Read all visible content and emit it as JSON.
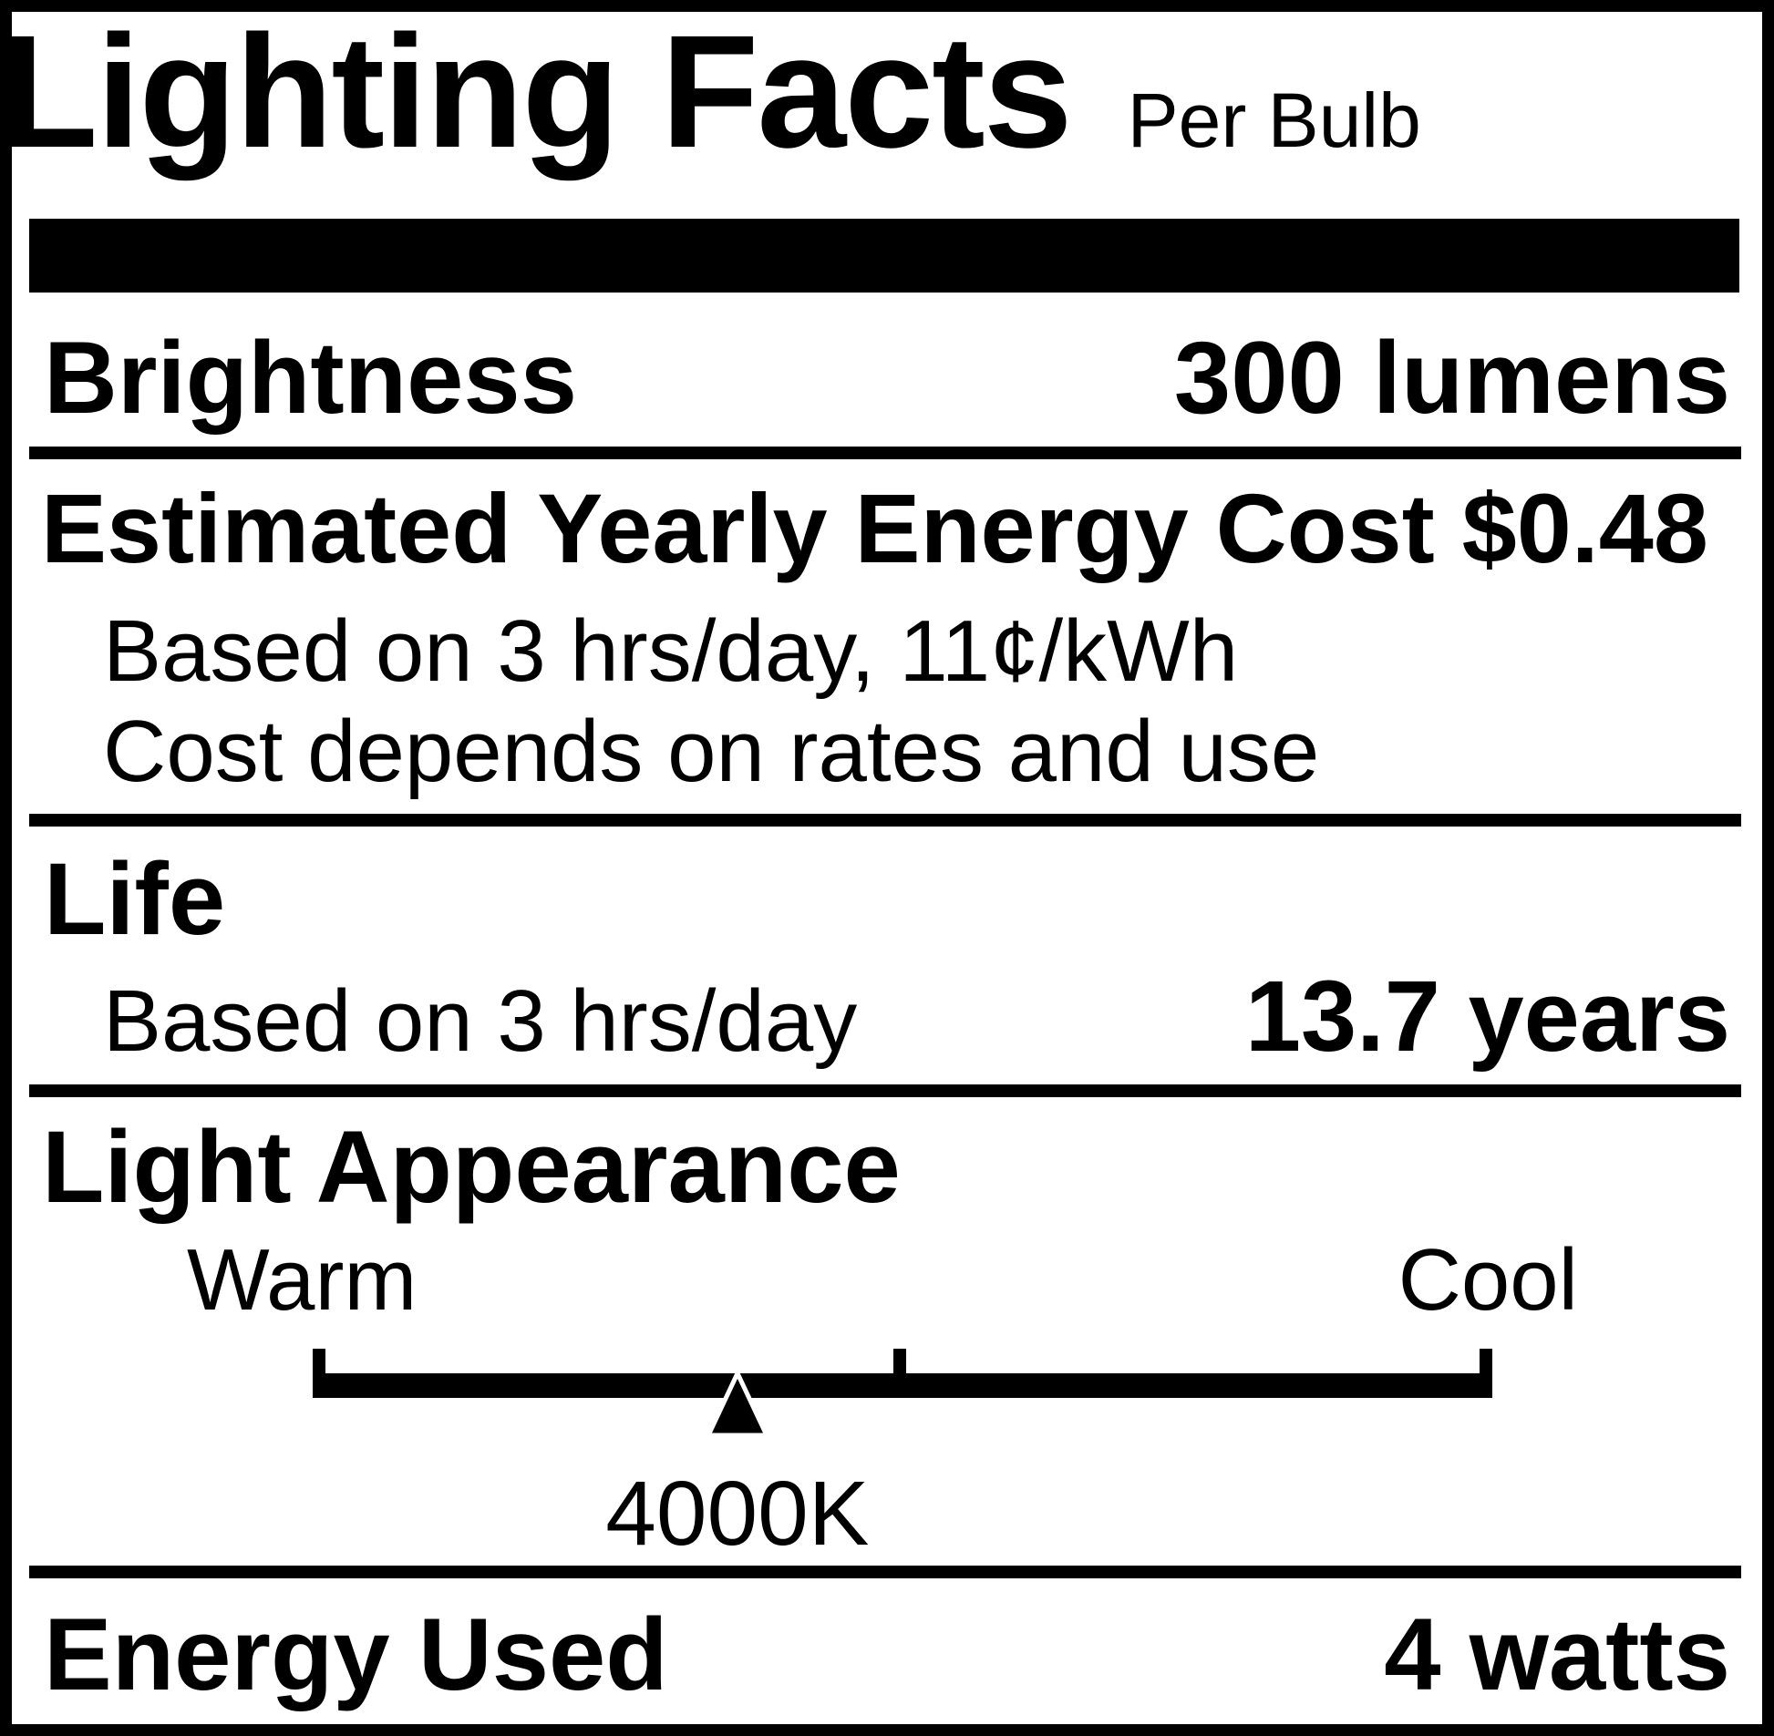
{
  "header": {
    "title": "Lighting Facts",
    "subtitle": "Per Bulb"
  },
  "brightness": {
    "label": "Brightness",
    "value": "300 lumens"
  },
  "energy_cost": {
    "label": "Estimated Yearly Energy Cost $0.48",
    "note1": "Based on 3 hrs/day, 11¢/kWh",
    "note2": "Cost depends on rates and use"
  },
  "life": {
    "label": "Life",
    "note": "Based on 3 hrs/day",
    "value": "13.7 years"
  },
  "light_appearance": {
    "label": "Light Appearance",
    "warm_label": "Warm",
    "cool_label": "Cool",
    "kelvin": "4000K",
    "marker_pct": 36
  },
  "energy_used": {
    "label": "Energy Used",
    "value": "4 watts"
  },
  "colors": {
    "ink": "#000000",
    "background": "#ffffff"
  }
}
